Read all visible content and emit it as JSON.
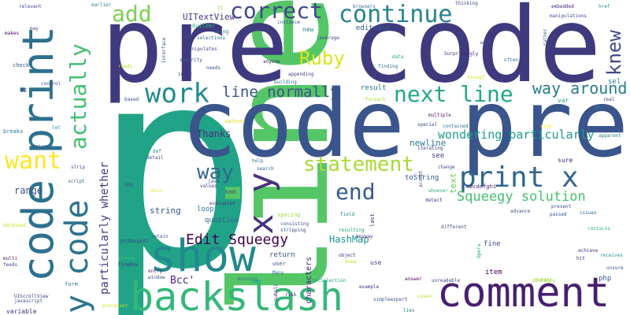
{
  "words": [
    {
      "text": "p",
      "color": "#20a386"
    },
    {
      "text": "line",
      "color": "#55c667"
    },
    {
      "text": "pre code",
      "color": "#3f3a7e"
    },
    {
      "text": "code pre",
      "color": "#3a548c"
    },
    {
      "text": "code print",
      "color": "#2d718e"
    },
    {
      "text": "show",
      "color": "#23898e"
    },
    {
      "text": "backslash",
      "color": "#35b779"
    },
    {
      "text": "comment",
      "color": "#481f70"
    },
    {
      "text": "y code",
      "color": "#2c738e"
    },
    {
      "text": "x y",
      "color": "#46327e"
    },
    {
      "text": "print x",
      "color": "#31668e"
    },
    {
      "text": "statement",
      "color": "#a8db34"
    },
    {
      "text": "work",
      "color": "#228c8d"
    },
    {
      "text": "next line",
      "color": "#22a785"
    },
    {
      "text": "continue",
      "color": "#26828e"
    },
    {
      "text": "correct",
      "color": "#3f4889"
    },
    {
      "text": "actually",
      "color": "#44bf70"
    },
    {
      "text": "add",
      "color": "#7ad151"
    },
    {
      "text": "want",
      "color": "#fde725"
    },
    {
      "text": "end",
      "color": "#375a8c"
    },
    {
      "text": "way",
      "color": "#31688e"
    },
    {
      "text": "knew",
      "color": "#3e4a89"
    },
    {
      "text": "Ruby",
      "color": "#dde318"
    },
    {
      "text": "way around",
      "color": "#287c8e"
    },
    {
      "text": "line normally",
      "color": "#3b528b"
    },
    {
      "text": "Edit Squeegy",
      "color": "#440154"
    },
    {
      "text": "Squeegy solution",
      "color": "#46c06f"
    },
    {
      "text": "wondering particularly",
      "color": "#1f9e89"
    },
    {
      "text": "particularly whether",
      "color": "#443983"
    },
    {
      "text": "Bcc'",
      "color": "#482677"
    },
    {
      "text": "Thanks",
      "color": "#472d7b"
    },
    {
      "text": "range",
      "color": "#3c4f8a"
    },
    {
      "text": "HashMap",
      "color": "#1f948c"
    },
    {
      "text": "UITextView",
      "color": "#453882"
    },
    {
      "text": "newline",
      "color": "#2a778e"
    },
    {
      "text": "string",
      "color": "#3b518b"
    },
    {
      "text": "Builder",
      "color": "#35b779"
    },
    {
      "text": "result",
      "color": "#2a788e"
    },
    {
      "text": "characters",
      "color": "#482173"
    },
    {
      "text": "text",
      "color": "#6ccd5a"
    },
    {
      "text": "question",
      "color": "#33638d"
    },
    {
      "text": "toString",
      "color": "#3b528b"
    },
    {
      "text": "loop",
      "color": "#2a768e"
    },
    {
      "text": "return",
      "color": "#3a548c"
    },
    {
      "text": "editable",
      "color": "#375b8d"
    },
    {
      "text": "new",
      "color": "#25848e"
    },
    {
      "text": "see",
      "color": "#433e85"
    },
    {
      "text": "fine",
      "color": "#3f4788"
    },
    {
      "text": "item",
      "color": "#440154"
    },
    {
      "text": "array",
      "color": "#bddf26"
    },
    {
      "text": "php",
      "color": "#39568c"
    },
    {
      "text": "sure",
      "color": "#482475"
    },
    {
      "text": "var",
      "color": "#26ad81"
    },
    {
      "text": "sel",
      "color": "#287d8e"
    },
    {
      "text": "abcdefghi",
      "color": "#482878"
    },
    {
      "text": "Many",
      "color": "#2d708e"
    },
    {
      "text": "user",
      "color": "#3d4d8a"
    },
    {
      "text": "use",
      "color": "#404588"
    },
    {
      "text": "object",
      "color": "#46337e"
    },
    {
      "text": "anyway",
      "color": "#453781"
    },
    {
      "text": "last",
      "color": "#481b6d"
    },
    {
      "text": "field",
      "color": "#25838e"
    },
    {
      "text": "spacing",
      "color": "#a0da39"
    },
    {
      "text": "html",
      "color": "#482071"
    },
    {
      "text": "values",
      "color": "#414487"
    },
    {
      "text": "java",
      "color": "#404588"
    },
    {
      "text": "help",
      "color": "#2c728e"
    },
    {
      "text": "search",
      "color": "#31688e"
    },
    {
      "text": "data",
      "color": "#22a884"
    },
    {
      "text": "finding",
      "color": "#2e6e8e"
    },
    {
      "text": "multiple",
      "color": "#471063"
    },
    {
      "text": "iterating",
      "color": "#443983"
    },
    {
      "text": "change",
      "color": "#3e4c8a"
    },
    {
      "text": "detect",
      "color": "#472c7a"
    },
    {
      "text": "whoever",
      "color": "#30b07a"
    },
    {
      "text": "different",
      "color": "#3d4e8a"
    },
    {
      "text": "Opera",
      "color": "#1fa188"
    },
    {
      "text": "issues",
      "color": "#2d718e"
    },
    {
      "text": "achieve",
      "color": "#472f7d"
    },
    {
      "text": "contains",
      "color": "#2fb47c"
    },
    {
      "text": "receives",
      "color": "#21918c"
    },
    {
      "text": "unsure",
      "color": "#39558c"
    },
    {
      "text": "passed",
      "color": "#3b528b"
    },
    {
      "text": "totally",
      "color": "#84d44b"
    },
    {
      "text": "answer",
      "color": "#450457"
    },
    {
      "text": "unreadable",
      "color": "#3e4989"
    },
    {
      "text": "simpleexpert",
      "color": "#3b528b"
    },
    {
      "text": "example",
      "color": "#46327e"
    },
    {
      "text": "getSelection",
      "color": "#20a386"
    },
    {
      "text": "risk",
      "color": "#482979"
    },
    {
      "text": "subeli",
      "color": "#472a7a"
    },
    {
      "text": "missing",
      "color": "#2e6f8e"
    },
    {
      "text": "window",
      "color": "#3c4f8a"
    },
    {
      "text": "entry",
      "color": "#482576"
    },
    {
      "text": "Chrome",
      "color": "#3fbc73"
    },
    {
      "text": "FireFox",
      "color": "#482677"
    },
    {
      "text": "getRangeAt",
      "color": "#3d4e8a"
    },
    {
      "text": "retain",
      "color": "#3b528b"
    },
    {
      "text": "UIScrollView",
      "color": "#433e85"
    },
    {
      "text": "javascript",
      "color": "#3f4889"
    },
    {
      "text": "variable",
      "color": "#472d7b"
    },
    {
      "text": "form",
      "color": "#2c738e"
    },
    {
      "text": "processor",
      "color": "#d2e21b"
    },
    {
      "text": "multi",
      "color": "#481467"
    },
    {
      "text": "feeds",
      "color": "#404688"
    },
    {
      "text": "strip",
      "color": "#3b528b"
    },
    {
      "text": "script",
      "color": "#34618d"
    },
    {
      "text": "app",
      "color": "#3e4a89"
    },
    {
      "text": "detail",
      "color": "#404588"
    },
    {
      "text": "def",
      "color": "#26828e"
    },
    {
      "text": "breaks",
      "color": "#2a788e"
    },
    {
      "text": "let",
      "color": "#21908d"
    },
    {
      "text": "stripped",
      "color": "#3a548c"
    },
    {
      "text": "IE",
      "color": "#3e4a89"
    },
    {
      "text": "check",
      "color": "#33638d"
    },
    {
      "text": "makes",
      "color": "#440154"
    },
    {
      "text": "relevant",
      "color": "#3e4989"
    },
    {
      "text": "earlier",
      "color": "#27808e"
    },
    {
      "text": "It",
      "color": "#7ad151"
    },
    {
      "text": "may",
      "color": "#3f4788"
    },
    {
      "text": "using",
      "color": "#2c728e"
    },
    {
      "text": "selections",
      "color": "#2e6e8e"
    },
    {
      "text": "security",
      "color": "#39568c"
    },
    {
      "text": "input",
      "color": "#46327e"
    },
    {
      "text": "needs",
      "color": "#3b528b"
    },
    {
      "text": "instance",
      "color": "#3e4a89"
    },
    {
      "text": "anyone",
      "color": "#482475"
    },
    {
      "text": "building",
      "color": "#2d718e"
    },
    {
      "text": "appending",
      "color": "#453781"
    },
    {
      "text": "leverage",
      "color": "#3f4889"
    },
    {
      "text": "Surprisingly",
      "color": "#472d7b"
    },
    {
      "text": "thinking",
      "color": "#3e4c8a"
    },
    {
      "text": "will",
      "color": "#3b528b"
    },
    {
      "text": "often",
      "color": "#2d718e"
    },
    {
      "text": "embedded",
      "color": "#482878"
    },
    {
      "text": "manipulations",
      "color": "#3b528b"
    },
    {
      "text": "href",
      "color": "#21918c"
    },
    {
      "text": "rather",
      "color": "#2c728e"
    },
    {
      "text": "real",
      "color": "#404588"
    },
    {
      "text": "ghi",
      "color": "#26828e"
    },
    {
      "text": "stop",
      "color": "#fde725"
    },
    {
      "text": "apparent",
      "color": "#2a788e"
    },
    {
      "text": "present",
      "color": "#3b528b"
    },
    {
      "text": "advance",
      "color": "#3f4788"
    },
    {
      "text": "hit",
      "color": "#482677"
    },
    {
      "text": "special",
      "color": "#3e4a89"
    },
    {
      "text": "contained",
      "color": "#2c728e"
    },
    {
      "text": "consisting",
      "color": "#3b528b"
    },
    {
      "text": "evaluates",
      "color": "#46327e"
    },
    {
      "text": "stripping",
      "color": "#3d4e8a"
    },
    {
      "text": "resulting",
      "color": "#20a386"
    },
    {
      "text": "based",
      "color": "#3e4989"
    },
    {
      "text": "methods",
      "color": "#d2e21b"
    },
    {
      "text": "manipulates",
      "color": "#404588"
    },
    {
      "text": "Interface",
      "color": "#3b528b"
    },
    {
      "text": "foreach",
      "color": "#a8db34"
    },
    {
      "text": "accept",
      "color": "#3b528b"
    },
    {
      "text": "browsers",
      "color": "#2e6e8e"
    },
    {
      "text": "Except",
      "color": "#dde318"
    },
    {
      "text": "control",
      "color": "#3e4a89"
    },
    {
      "text": "reads",
      "color": "#b5de2b"
    },
    {
      "text": "know",
      "color": "#c8e020"
    },
    {
      "text": "divs",
      "color": "#dde318"
    },
    {
      "text": "cases",
      "color": "#b5de2b"
    },
    {
      "text": "detained",
      "color": "#c8e020"
    },
    {
      "text": "lies",
      "color": "#2a788e"
    }
  ]
}
